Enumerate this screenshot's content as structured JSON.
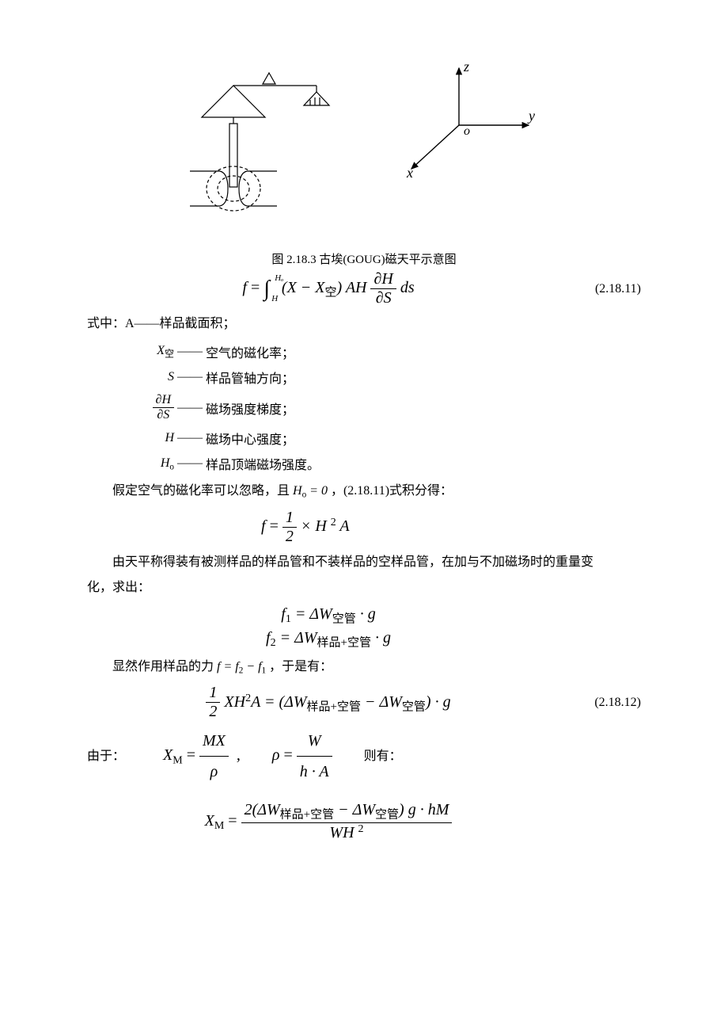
{
  "figure": {
    "caption": "图 2.18.3 古埃(GOUG)磁天平示意图",
    "axes": {
      "x": "x",
      "y": "y",
      "z": "z",
      "o": "o"
    },
    "colors": {
      "stroke": "#000000",
      "background": "#ffffff"
    },
    "stroke_width": 1.2
  },
  "eq_main": {
    "lhs": "f",
    "eqnum": "(2.18.11)",
    "int_lower": "H",
    "int_upper": "Hₒ",
    "integrand_a": "(X − X",
    "integrand_a_sub": "空",
    "integrand_b": ")  AH",
    "frac_num": "∂H",
    "frac_den": "∂S",
    "tail": "ds"
  },
  "defs_intro": "式中：A——样品截面积；",
  "defs": [
    {
      "sym_html": "X<span class='sub cn'>空</span>",
      "desc": "空气的磁化率；"
    },
    {
      "sym_html": "S",
      "desc": "样品管轴方向；"
    },
    {
      "sym_html": "<span class='frac'><span class='num'>∂H</span><span class='den'>∂S</span></span>",
      "desc": "磁场强度梯度；"
    },
    {
      "sym_html": "H",
      "desc": "磁场中心强度；"
    },
    {
      "sym_html": "H<span class='sub'>o</span>",
      "desc": "样品顶端磁场强度。"
    }
  ],
  "para1": "假定空气的磁化率可以忽略，且",
  "para1_math": "H<span class='sub'>o</span> = 0",
  "para1_tail": "，(2.18.11)式积分得：",
  "eq_fhalf": {
    "lhs": "f",
    "frac_num": "1",
    "frac_den": "2",
    "rhs": "× H <span class='sup'>2</span> A"
  },
  "para2_a": "由天平称得装有被测样品的样品管和不装样品的空样品管，在加与不加磁场时的重量变",
  "para2_b": "化，求出：",
  "eq_f1": "f<span class='sub'>1</span> = ΔW<span class='sub cn'>空管</span> · g",
  "eq_f2": "f<span class='sub'>2</span> = ΔW<span class='sub cn'>样品+空管</span> · g",
  "para3_a": "显然作用样品的力",
  "para3_math": "f = f<span class='sub'>2</span> − f<span class='sub'>1</span>",
  "para3_b": "，于是有：",
  "eq_12": {
    "eqnum": "(2.18.12)",
    "lhs_num": "1",
    "lhs_den": "2",
    "lhs_tail": "XH<span class='sup'>2</span>A = (ΔW<span class='sub cn'>样品+空管</span> − ΔW<span class='sub cn'>空管</span>) · g"
  },
  "line_due": {
    "lead": "由于：",
    "xm_num": "MX",
    "xm_den": "ρ",
    "rho_num": "W",
    "rho_den": "h · A",
    "tail": "则有："
  },
  "eq_final": {
    "lhs": "X<span class='sub'>M</span>",
    "num": "2(ΔW<span class='sub cn'>样品+空管</span> − ΔW<span class='sub cn'>空管</span>)  g · hM",
    "den": "WH <span class='sup'>2</span>"
  }
}
